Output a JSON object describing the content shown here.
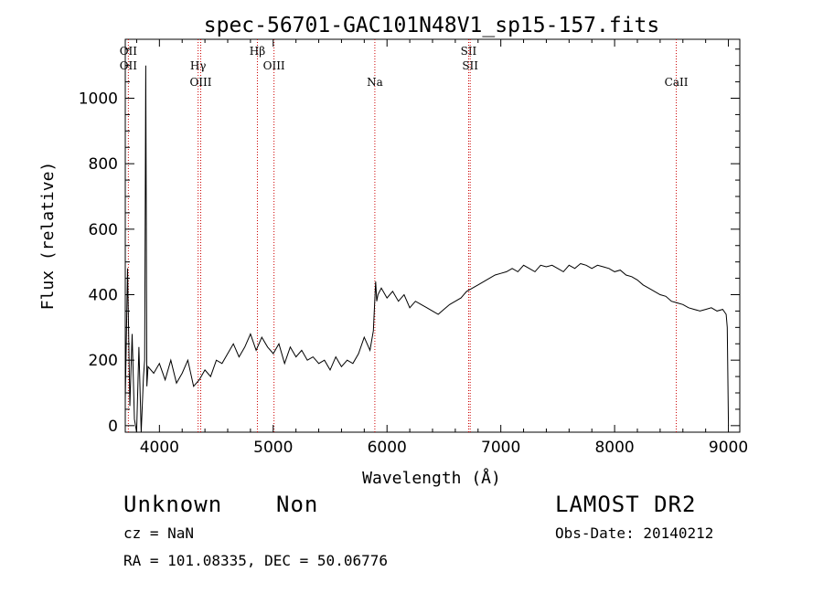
{
  "chart_data": {
    "type": "line",
    "title": "spec-56701-GAC101N48V1_sp15-157.fits",
    "xlabel": "Wavelength (Å)",
    "ylabel": "Flux (relative)",
    "xlim": [
      3700,
      9100
    ],
    "ylim": [
      -20,
      1180
    ],
    "x_ticks": [
      4000,
      5000,
      6000,
      7000,
      8000,
      9000
    ],
    "x_tick_labels": [
      "4000",
      "5000",
      "6000",
      "7000",
      "8000",
      "9000"
    ],
    "y_ticks": [
      0,
      200,
      400,
      600,
      800,
      1000
    ],
    "y_tick_labels": [
      "0",
      "200",
      "400",
      "600",
      "800",
      "1000"
    ],
    "grid": false,
    "line_color": "#000000",
    "marker_color": "#cc0000",
    "series": [
      {
        "x": [
          3700,
          3720,
          3740,
          3760,
          3780,
          3800,
          3820,
          3840,
          3860,
          3870,
          3880,
          3890,
          3900,
          3950,
          4000,
          4050,
          4100,
          4150,
          4200,
          4250,
          4300,
          4350,
          4400,
          4450,
          4500,
          4550,
          4600,
          4650,
          4700,
          4750,
          4800,
          4850,
          4900,
          4950,
          5000,
          5050,
          5100,
          5150,
          5200,
          5250,
          5300,
          5350,
          5400,
          5450,
          5500,
          5550,
          5600,
          5650,
          5700,
          5750,
          5800,
          5850,
          5880,
          5900,
          5910,
          5920,
          5950,
          6000,
          6050,
          6100,
          6150,
          6200,
          6250,
          6300,
          6350,
          6400,
          6450,
          6500,
          6550,
          6600,
          6650,
          6700,
          6750,
          6800,
          6850,
          6900,
          6950,
          7000,
          7050,
          7100,
          7150,
          7200,
          7250,
          7300,
          7350,
          7400,
          7450,
          7500,
          7550,
          7600,
          7650,
          7700,
          7750,
          7800,
          7850,
          7900,
          7950,
          8000,
          8050,
          8100,
          8150,
          8200,
          8250,
          8300,
          8350,
          8400,
          8450,
          8500,
          8550,
          8600,
          8650,
          8700,
          8750,
          8800,
          8850,
          8900,
          8950,
          8980,
          8990,
          9000
        ],
        "y": [
          80,
          480,
          60,
          280,
          20,
          -20,
          240,
          -20,
          150,
          200,
          1100,
          120,
          180,
          160,
          190,
          140,
          200,
          130,
          160,
          200,
          120,
          140,
          170,
          150,
          200,
          190,
          220,
          250,
          210,
          240,
          280,
          230,
          270,
          240,
          220,
          250,
          190,
          240,
          210,
          230,
          200,
          210,
          190,
          200,
          170,
          210,
          180,
          200,
          190,
          220,
          270,
          230,
          290,
          440,
          380,
          400,
          420,
          390,
          410,
          380,
          400,
          360,
          380,
          370,
          360,
          350,
          340,
          355,
          370,
          380,
          390,
          410,
          420,
          430,
          440,
          450,
          460,
          465,
          470,
          480,
          470,
          490,
          480,
          470,
          490,
          485,
          490,
          480,
          470,
          490,
          480,
          495,
          490,
          480,
          490,
          485,
          480,
          470,
          475,
          460,
          455,
          445,
          430,
          420,
          410,
          400,
          395,
          380,
          375,
          370,
          360,
          355,
          350,
          355,
          360,
          350,
          355,
          340,
          300,
          0
        ]
      }
    ],
    "lines": [
      {
        "x": 3727,
        "labels": [
          "OII",
          "OII"
        ]
      },
      {
        "x": 4340,
        "labels": [
          "Hγ"
        ]
      },
      {
        "x": 4363,
        "labels": [
          "OIII"
        ]
      },
      {
        "x": 4861,
        "labels": [
          "Hβ"
        ]
      },
      {
        "x": 5007,
        "labels": [
          "OIII"
        ]
      },
      {
        "x": 5893,
        "labels": [
          "Na"
        ]
      },
      {
        "x": 6717,
        "labels": [
          "SII"
        ]
      },
      {
        "x": 6731,
        "labels": [
          "SII"
        ]
      },
      {
        "x": 8542,
        "labels": [
          "CaII"
        ]
      }
    ]
  },
  "footer": {
    "object_class": "Unknown",
    "subclass": "Non",
    "survey": "LAMOST DR2",
    "cz": "cz = NaN",
    "obs_date": "Obs-Date: 20140212",
    "coords": "RA = 101.08335, DEC =  50.06776"
  }
}
